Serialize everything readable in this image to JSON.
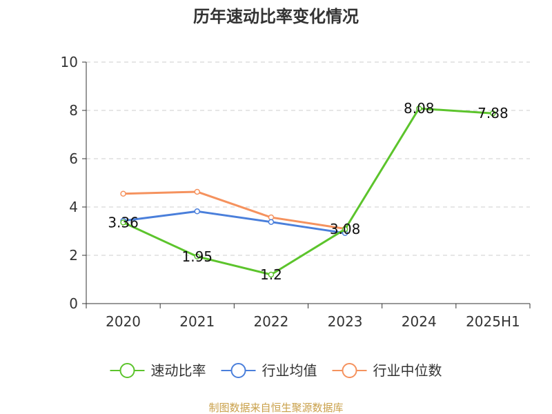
{
  "chart_data": {
    "type": "line",
    "title": "历年速动比率变化情况",
    "categories": [
      "2020",
      "2021",
      "2022",
      "2023",
      "2024",
      "2025H1"
    ],
    "ylim": [
      0,
      10
    ],
    "yticks": [
      "0",
      "2",
      "4",
      "6",
      "8",
      "10"
    ],
    "grid": true,
    "legend_position": "bottom",
    "series": [
      {
        "name": "速动比率",
        "color": "#5cc42c",
        "values": [
          3.36,
          1.95,
          1.2,
          3.08,
          8.08,
          7.88
        ],
        "labels": [
          "3.36",
          "1.95",
          "1.2",
          "3.08",
          "8.08",
          "7.88"
        ]
      },
      {
        "name": "行业均值",
        "color": "#4a7fdb",
        "values": [
          3.43,
          3.82,
          3.38,
          2.92,
          null,
          null
        ]
      },
      {
        "name": "行业中位数",
        "color": "#f5925e",
        "values": [
          4.55,
          4.63,
          3.57,
          3.1,
          null,
          null
        ]
      }
    ]
  },
  "source": "制图数据来自恒生聚源数据库",
  "colors": {
    "source": "#c9a04a",
    "grid": "#cccccc",
    "axis": "#333333"
  }
}
